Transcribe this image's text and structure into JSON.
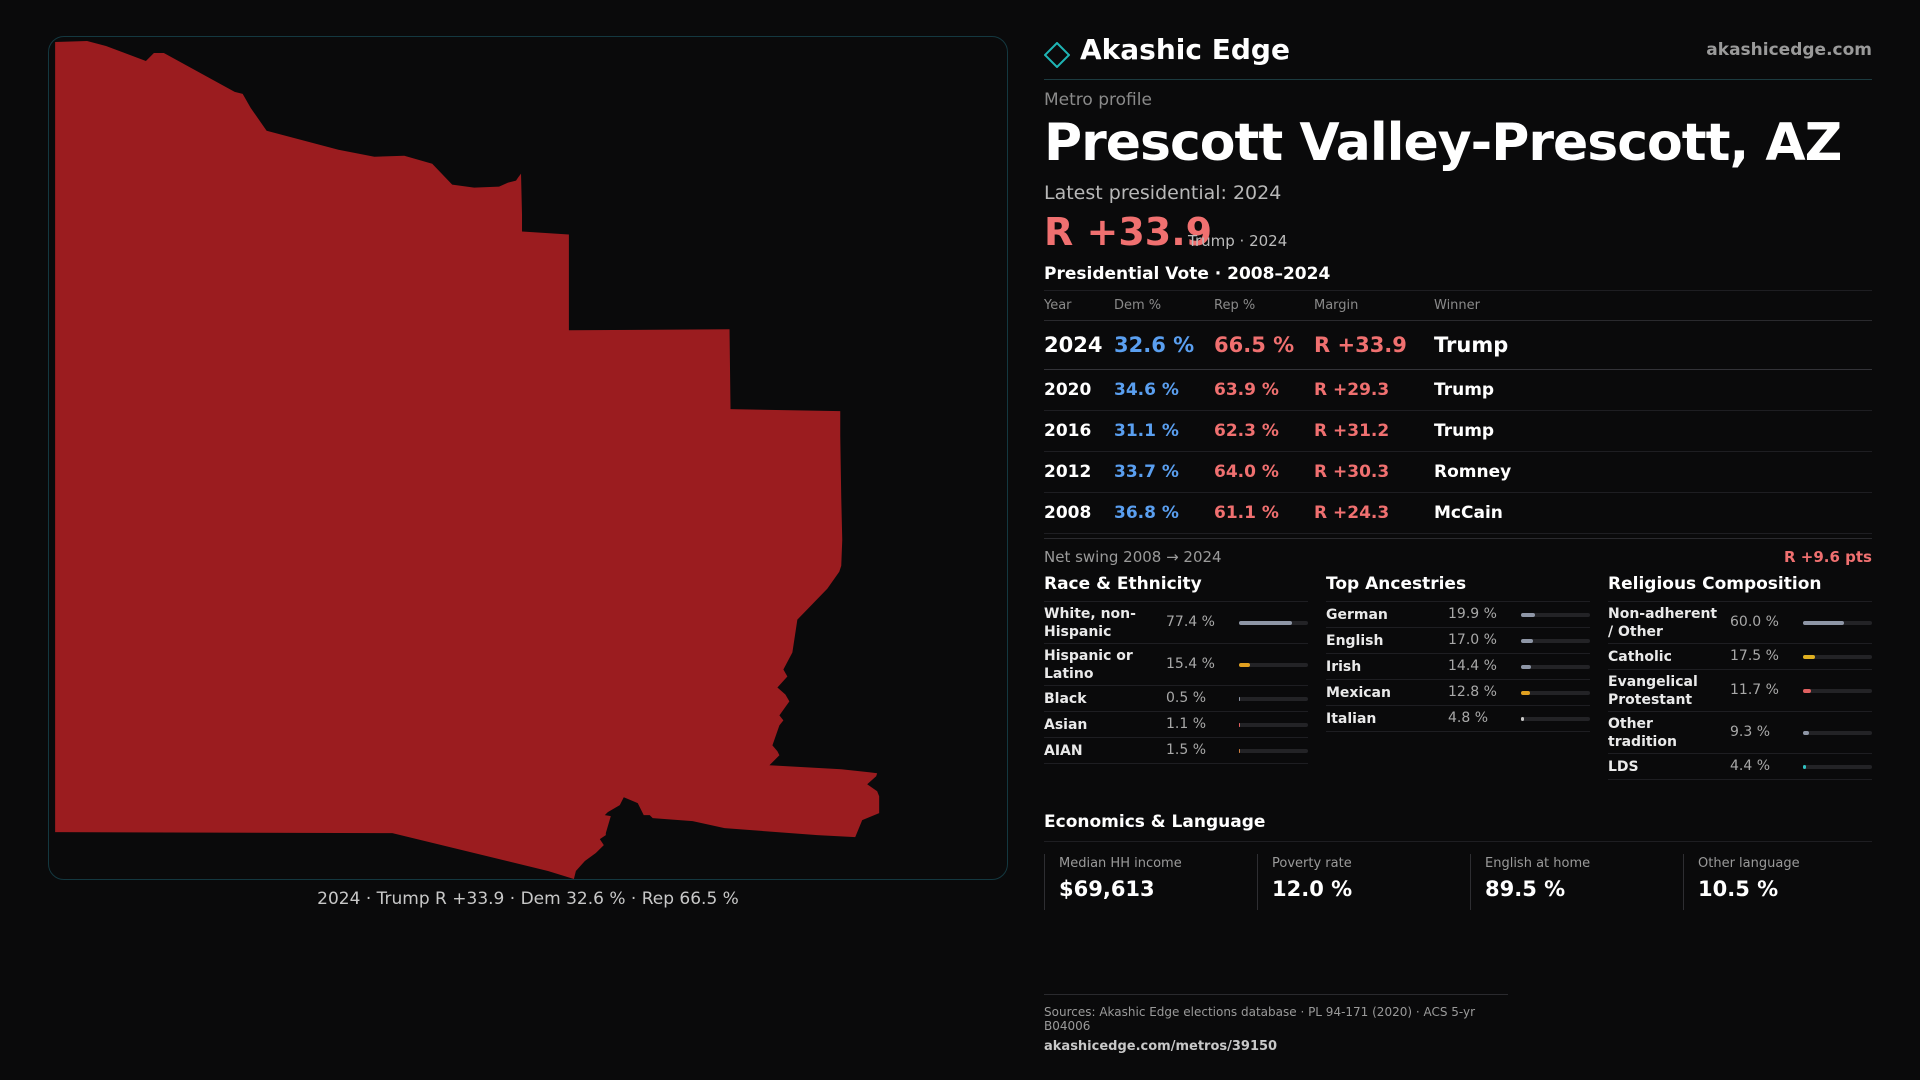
{
  "map": {
    "caption": "2024 · Trump R +33.9 · Dem 32.6 % · Rep 66.5 %",
    "fill_color": "#9b1c1f"
  },
  "header": {
    "logo_icon": "diamond-outline-icon",
    "brand": "Akashic Edge",
    "site": "akashicedge.com"
  },
  "profile": {
    "kicker": "Metro profile",
    "title": "Prescott Valley-Prescott,  AZ",
    "latest": "Latest presidential: 2024",
    "margin": "R +33.9",
    "margin_sub": "Trump · 2024"
  },
  "votes": {
    "title": "Presidential Vote · 2008–2024",
    "headers": [
      "Year",
      "Dem %",
      "Rep %",
      "Margin",
      "Winner"
    ],
    "rows": [
      {
        "year": "2024",
        "dem": "32.6 %",
        "rep": "66.5 %",
        "margin": "R +33.9",
        "winner": "Trump"
      },
      {
        "year": "2020",
        "dem": "34.6 %",
        "rep": "63.9 %",
        "margin": "R +29.3",
        "winner": "Trump"
      },
      {
        "year": "2016",
        "dem": "31.1 %",
        "rep": "62.3 %",
        "margin": "R +31.2",
        "winner": "Trump"
      },
      {
        "year": "2012",
        "dem": "33.7 %",
        "rep": "64.0 %",
        "margin": "R +30.3",
        "winner": "Romney"
      },
      {
        "year": "2008",
        "dem": "36.8 %",
        "rep": "61.1 %",
        "margin": "R +24.3",
        "winner": "McCain"
      }
    ],
    "swing_label": "Net swing 2008 → 2024",
    "swing_value": "R +9.6 pts"
  },
  "race": {
    "title": "Race & Ethnicity",
    "items": [
      {
        "label": "White, non-Hispanic",
        "value": "77.4 %",
        "pct": 77.4,
        "color": "#8e96a6"
      },
      {
        "label": "Hispanic or Latino",
        "value": "15.4 %",
        "pct": 15.4,
        "color": "#e0a020"
      },
      {
        "label": "Black",
        "value": "0.5 %",
        "pct": 0.5,
        "color": "#8e96a6"
      },
      {
        "label": "Asian",
        "value": "1.1 %",
        "pct": 1.1,
        "color": "#e06060"
      },
      {
        "label": "AIAN",
        "value": "1.5 %",
        "pct": 1.5,
        "color": "#d08040"
      }
    ]
  },
  "ancestry": {
    "title": "Top Ancestries",
    "items": [
      {
        "label": "German",
        "value": "19.9 %",
        "pct": 19.9,
        "color": "#8e96a6"
      },
      {
        "label": "English",
        "value": "17.0 %",
        "pct": 17.0,
        "color": "#8e96a6"
      },
      {
        "label": "Irish",
        "value": "14.4 %",
        "pct": 14.4,
        "color": "#8e96a6"
      },
      {
        "label": "Mexican",
        "value": "12.8 %",
        "pct": 12.8,
        "color": "#e0a020"
      },
      {
        "label": "Italian",
        "value": "4.8 %",
        "pct": 4.8,
        "color": "#c8c8c8"
      }
    ]
  },
  "religion": {
    "title": "Religious Composition",
    "items": [
      {
        "label": "Non-adherent / Other",
        "value": "60.0 %",
        "pct": 60.0,
        "color": "#8e96a6"
      },
      {
        "label": "Catholic",
        "value": "17.5 %",
        "pct": 17.5,
        "color": "#e0b020"
      },
      {
        "label": "Evangelical Protestant",
        "value": "11.7 %",
        "pct": 11.7,
        "color": "#e06060"
      },
      {
        "label": "Other tradition",
        "value": "9.3 %",
        "pct": 9.3,
        "color": "#8e96a6"
      },
      {
        "label": "LDS",
        "value": "4.4 %",
        "pct": 4.4,
        "color": "#30c0c0"
      }
    ]
  },
  "economics": {
    "title": "Economics & Language",
    "items": [
      {
        "label": "Median HH income",
        "value": "$69,613"
      },
      {
        "label": "Poverty rate",
        "value": "12.0 %"
      },
      {
        "label": "English at home",
        "value": "89.5 %"
      },
      {
        "label": "Other language",
        "value": "10.5 %"
      }
    ]
  },
  "sources": {
    "text": "Sources: Akashic Edge elections database · PL 94-171 (2020) · ACS 5-yr B04006",
    "url": "akashicedge.com/metros/39150"
  }
}
